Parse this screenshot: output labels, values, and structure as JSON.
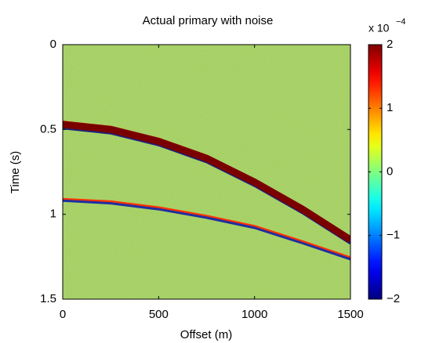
{
  "chart_data": {
    "type": "image",
    "title": "Actual primary with noise",
    "x_label": "Offset (m)",
    "y_label": "Time (s)",
    "xlim": [
      0,
      1500
    ],
    "xticks": [
      0,
      500,
      1000,
      1500
    ],
    "ylim": [
      1.5,
      0
    ],
    "yticks": [
      0,
      0.5,
      1,
      1.5
    ],
    "colormap": "jet",
    "clim": [
      -2,
      2
    ],
    "cticks": [
      {
        "value": -2,
        "label": "−2"
      },
      {
        "value": -1,
        "label": "−1"
      },
      0,
      1,
      2
    ],
    "colorbar_label": "x 10",
    "colorbar_exponent": "−4",
    "series": [
      {
        "color": "#1a237e",
        "x": [
          0,
          250,
          500,
          750,
          1000,
          1250,
          1500
        ],
        "values": [
          0.49,
          0.52,
          0.59,
          0.69,
          0.83,
          0.99,
          1.17
        ]
      },
      {
        "color": "#ff2a00",
        "x": [
          0,
          250,
          500,
          750,
          1000,
          1250,
          1500
        ],
        "values": [
          0.455,
          0.485,
          0.555,
          0.655,
          0.795,
          0.955,
          1.135
        ]
      },
      {
        "color": "#7a0000",
        "x": [
          0,
          250,
          500,
          750,
          1000,
          1250,
          1500
        ],
        "values": [
          0.47,
          0.5,
          0.57,
          0.67,
          0.81,
          0.97,
          1.15
        ]
      },
      {
        "color": "#ff3300",
        "x": [
          0,
          250,
          500,
          750,
          1000,
          1250,
          1500
        ],
        "values": [
          0.91,
          0.925,
          0.96,
          1.01,
          1.07,
          1.16,
          1.255
        ]
      },
      {
        "color": "#1f2fa0",
        "x": [
          0,
          250,
          500,
          750,
          1000,
          1250,
          1500
        ],
        "values": [
          0.92,
          0.935,
          0.97,
          1.02,
          1.08,
          1.17,
          1.265
        ]
      }
    ]
  }
}
